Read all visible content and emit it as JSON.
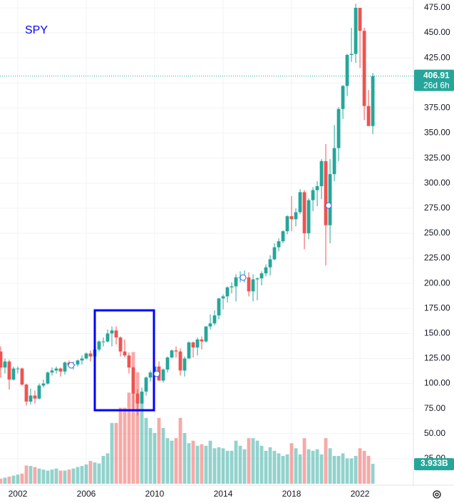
{
  "chart_data": {
    "type": "candlestick",
    "title": "SPY",
    "x": [
      2001,
      2001.25,
      2001.5,
      2001.75,
      2002,
      2002.25,
      2002.5,
      2002.75,
      2003,
      2003.25,
      2003.5,
      2003.75,
      2004,
      2004.25,
      2004.5,
      2004.75,
      2005,
      2005.25,
      2005.5,
      2005.75,
      2006,
      2006.25,
      2006.5,
      2006.75,
      2007,
      2007.25,
      2007.5,
      2007.75,
      2008,
      2008.25,
      2008.5,
      2008.75,
      2009,
      2009.25,
      2009.5,
      2009.75,
      2010,
      2010.25,
      2010.5,
      2010.75,
      2011,
      2011.25,
      2011.5,
      2011.75,
      2012,
      2012.25,
      2012.5,
      2012.75,
      2013,
      2013.25,
      2013.5,
      2013.75,
      2014,
      2014.25,
      2014.5,
      2014.75,
      2015,
      2015.25,
      2015.5,
      2015.75,
      2016,
      2016.25,
      2016.5,
      2016.75,
      2017,
      2017.25,
      2017.5,
      2017.75,
      2018,
      2018.25,
      2018.5,
      2018.75,
      2019,
      2019.25,
      2019.5,
      2019.75,
      2020,
      2020.25,
      2020.5,
      2020.75,
      2021,
      2021.25,
      2021.5,
      2021.75,
      2022,
      2022.25,
      2022.5,
      2022.75
    ],
    "open": [
      132,
      116,
      122,
      104,
      115,
      115,
      99,
      82,
      88,
      85,
      98,
      100,
      111,
      113,
      115,
      112,
      121,
      118,
      119,
      123,
      125,
      130,
      127,
      134,
      142,
      142,
      150,
      153,
      146,
      132,
      128,
      116,
      90,
      80,
      92,
      106,
      111,
      117,
      103,
      114,
      126,
      133,
      132,
      113,
      125,
      141,
      136,
      144,
      142,
      157,
      160,
      168,
      185,
      187,
      196,
      197,
      206,
      206,
      206,
      192,
      204,
      205,
      210,
      216,
      224,
      236,
      242,
      252,
      267,
      264,
      271,
      291,
      250,
      283,
      293,
      297,
      322,
      258,
      309,
      335,
      374,
      397,
      428,
      429,
      475,
      452,
      377,
      357
    ],
    "high": [
      137,
      125,
      124,
      117,
      117,
      116,
      100,
      95,
      93,
      100,
      104,
      112,
      116,
      117,
      116,
      122,
      123,
      122,
      124,
      128,
      131,
      133,
      135,
      143,
      146,
      154,
      157,
      157,
      147,
      144,
      131,
      117,
      94,
      96,
      107,
      113,
      118,
      122,
      115,
      127,
      134,
      137,
      135,
      127,
      142,
      142,
      146,
      147,
      157,
      169,
      173,
      185,
      189,
      197,
      201,
      209,
      212,
      213,
      211,
      209,
      206,
      212,
      219,
      228,
      240,
      245,
      253,
      268,
      287,
      275,
      294,
      293,
      285,
      296,
      302,
      324,
      339,
      324,
      358,
      376,
      398,
      429,
      455,
      479,
      473,
      455,
      393,
      410
    ],
    "low": [
      106,
      110,
      94,
      103,
      110,
      98,
      78,
      79,
      80,
      84,
      96,
      99,
      108,
      110,
      107,
      109,
      116,
      114,
      117,
      119,
      124,
      122,
      123,
      132,
      137,
      141,
      137,
      139,
      127,
      126,
      110,
      74,
      68,
      80,
      88,
      102,
      107,
      103,
      101,
      111,
      125,
      126,
      108,
      107,
      125,
      126,
      128,
      134,
      141,
      154,
      158,
      164,
      174,
      181,
      190,
      182,
      201,
      201,
      187,
      182,
      183,
      198,
      207,
      208,
      223,
      232,
      240,
      249,
      252,
      257,
      269,
      234,
      244,
      272,
      277,
      284,
      218,
      240,
      302,
      322,
      364,
      387,
      421,
      420,
      415,
      363,
      357,
      349
    ],
    "close": [
      116,
      122,
      104,
      115,
      115,
      99,
      82,
      88,
      85,
      98,
      100,
      111,
      113,
      115,
      112,
      121,
      118,
      119,
      123,
      125,
      130,
      127,
      134,
      142,
      142,
      150,
      153,
      146,
      132,
      128,
      116,
      90,
      80,
      92,
      106,
      111,
      117,
      103,
      114,
      126,
      133,
      132,
      113,
      125,
      141,
      136,
      144,
      142,
      157,
      160,
      168,
      185,
      187,
      196,
      197,
      206,
      206,
      206,
      192,
      204,
      205,
      210,
      216,
      224,
      236,
      242,
      252,
      267,
      264,
      271,
      291,
      250,
      283,
      293,
      297,
      322,
      258,
      309,
      335,
      374,
      397,
      428,
      429,
      475,
      452,
      377,
      357,
      406.91
    ],
    "up_color": "#26a69a",
    "down_color": "#ef5350",
    "volume": {
      "values": [
        1.0,
        1.2,
        1.4,
        1.6,
        1.8,
        2.0,
        3.6,
        3.5,
        3.3,
        3.0,
        2.8,
        2.6,
        2.8,
        3.0,
        2.6,
        2.6,
        2.8,
        3.0,
        3.3,
        3.5,
        3.8,
        4.5,
        4.2,
        4.0,
        5.5,
        6.0,
        12.0,
        12.0,
        15.0,
        15.0,
        18.0,
        26.0,
        22.0,
        18.0,
        13.0,
        11.0,
        10.0,
        13.0,
        11.0,
        9.0,
        8.5,
        9.0,
        13.0,
        10.0,
        8.0,
        8.5,
        7.5,
        7.8,
        7.5,
        8.5,
        7.0,
        7.2,
        7.0,
        6.5,
        6.5,
        8.5,
        7.5,
        6.8,
        9.0,
        9.0,
        8.5,
        7.5,
        6.5,
        7.2,
        6.5,
        6.0,
        5.5,
        5.8,
        8.0,
        7.0,
        5.8,
        9.0,
        6.8,
        6.5,
        6.8,
        5.8,
        9.0,
        7.0,
        5.5,
        5.5,
        6.0,
        5.0,
        5.0,
        5.5,
        7.0,
        6.5,
        5.5,
        3.933
      ],
      "last_label": "3.933B",
      "ylim": [
        0,
        95.5
      ]
    },
    "countdown": "26d 6h",
    "xlim": [
      2000.96,
      2025.12
    ],
    "xticks": [
      2002,
      2006,
      2010,
      2014,
      2018,
      2022
    ],
    "ylim": [
      0,
      482.8
    ],
    "yticks": [
      {
        "value": 25,
        "label": "25.00"
      },
      {
        "value": 50,
        "label": "50.00"
      },
      {
        "value": 75,
        "label": "75.00"
      },
      {
        "value": 100,
        "label": "100.00"
      },
      {
        "value": 125,
        "label": "125.00"
      },
      {
        "value": 150,
        "label": "150.00"
      },
      {
        "value": 175,
        "label": "175.00"
      },
      {
        "value": 200,
        "label": "200.00"
      },
      {
        "value": 225,
        "label": "225.00"
      },
      {
        "value": 250,
        "label": "250.00"
      },
      {
        "value": 275,
        "label": "275.00"
      },
      {
        "value": 300,
        "label": "300.00"
      },
      {
        "value": 325,
        "label": "325.00"
      },
      {
        "value": 350,
        "label": "350.00"
      },
      {
        "value": 375,
        "label": "375.00"
      },
      {
        "value": 400,
        "label": "400.00"
      },
      {
        "value": 425,
        "label": "425.00"
      },
      {
        "value": 450,
        "label": "450.00"
      },
      {
        "value": 475,
        "label": "475.00"
      }
    ],
    "grid": true
  }
}
